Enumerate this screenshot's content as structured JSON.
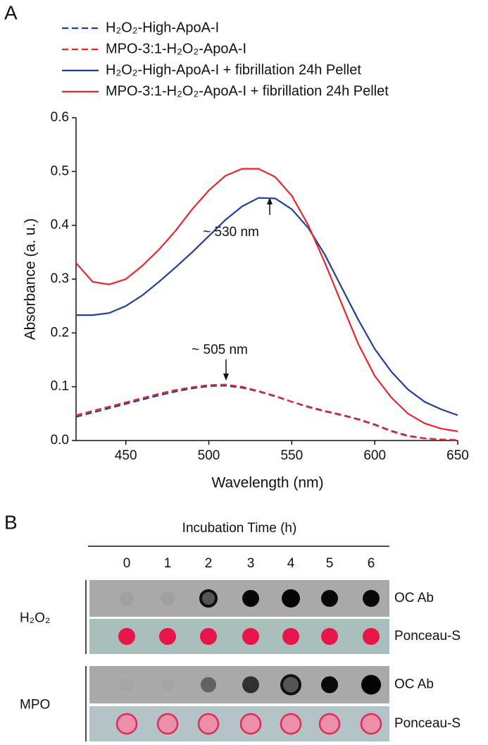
{
  "panel_labels": [
    "A",
    "B"
  ],
  "chart_data": {
    "type": "line",
    "x_label": "Wavelength (nm)",
    "y_label": "Absorbance (a. u.)",
    "x": [
      420,
      430,
      440,
      450,
      460,
      470,
      480,
      490,
      500,
      510,
      520,
      530,
      540,
      550,
      560,
      570,
      580,
      590,
      600,
      610,
      620,
      630,
      640,
      650
    ],
    "series": [
      {
        "name": "H₂O₂-High-ApoA-I",
        "color": "#1f3f9a",
        "style": "dashed",
        "values": [
          0.044,
          0.052,
          0.06,
          0.068,
          0.076,
          0.084,
          0.091,
          0.097,
          0.101,
          0.102,
          0.098,
          0.091,
          0.082,
          0.072,
          0.063,
          0.055,
          0.048,
          0.04,
          0.03,
          0.018,
          0.009,
          0.004,
          0.002,
          0.001
        ]
      },
      {
        "name": "MPO-3:1-H₂O₂-ApoA-I",
        "color": "#e8262b",
        "style": "dashed",
        "values": [
          0.047,
          0.055,
          0.063,
          0.071,
          0.079,
          0.087,
          0.094,
          0.099,
          0.103,
          0.104,
          0.1,
          0.092,
          0.083,
          0.072,
          0.062,
          0.054,
          0.047,
          0.039,
          0.029,
          0.017,
          0.008,
          0.004,
          0.002,
          0.001
        ]
      },
      {
        "name": "H₂O₂-High-ApoA-I + fibrillation 24h Pellet",
        "color": "#1f3f9a",
        "style": "solid",
        "values": [
          0.233,
          0.233,
          0.237,
          0.25,
          0.27,
          0.295,
          0.322,
          0.35,
          0.38,
          0.41,
          0.435,
          0.451,
          0.45,
          0.43,
          0.395,
          0.345,
          0.285,
          0.225,
          0.17,
          0.128,
          0.095,
          0.072,
          0.058,
          0.047
        ]
      },
      {
        "name": "MPO-3:1-H₂O₂-ApoA-I + fibrillation 24h Pellet",
        "color": "#e8262b",
        "style": "solid",
        "values": [
          0.33,
          0.295,
          0.29,
          0.3,
          0.325,
          0.355,
          0.39,
          0.43,
          0.465,
          0.492,
          0.505,
          0.505,
          0.49,
          0.455,
          0.4,
          0.33,
          0.255,
          0.18,
          0.12,
          0.08,
          0.05,
          0.032,
          0.022,
          0.017
        ]
      }
    ],
    "annotations": [
      "~ 530 nm",
      "~ 505 nm"
    ],
    "xlim": [
      420,
      650
    ],
    "xticks": [
      450,
      500,
      550,
      600,
      650
    ],
    "ylim": [
      0,
      0.6
    ],
    "yticks": [
      {
        "value": 0,
        "label": "0.0"
      },
      0.1,
      0.2,
      0.3,
      0.4,
      0.5,
      0.6
    ],
    "grid": false
  },
  "blot": {
    "title": "Incubation Time (h)",
    "columns": [
      "0",
      "1",
      "2",
      "3",
      "4",
      "5",
      "6"
    ],
    "groups": [
      {
        "label": "H₂O₂",
        "strips": [
          "OC Ab",
          "Ponceau-S"
        ]
      },
      {
        "label": "MPO",
        "strips": [
          "OC Ab",
          "Ponceau-S"
        ]
      }
    ]
  }
}
